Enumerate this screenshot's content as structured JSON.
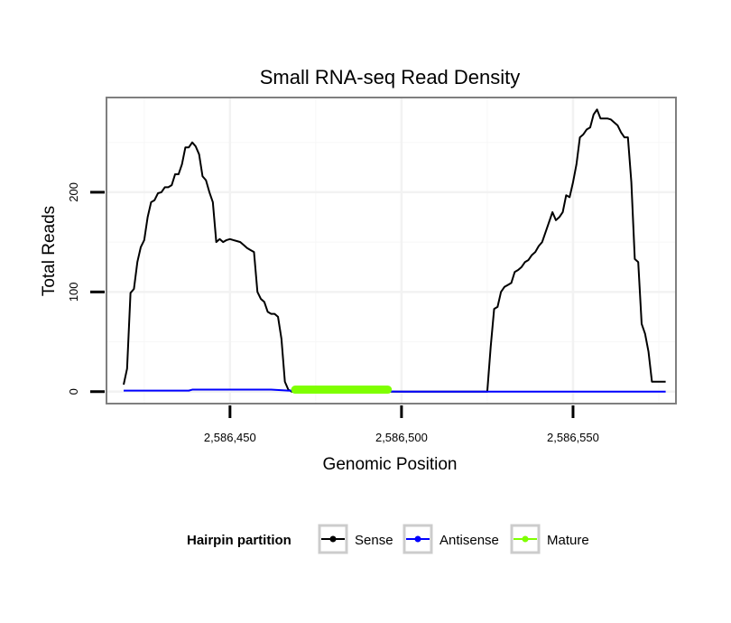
{
  "chart_data": {
    "type": "line",
    "title": "Small RNA-seq Read Density",
    "xlabel": "Genomic Position",
    "ylabel": "Total Reads",
    "xlim": [
      2586414,
      2586580
    ],
    "ylim": [
      -12,
      295
    ],
    "x_ticks": [
      2586450,
      2586500,
      2586550
    ],
    "x_tick_labels": [
      "2,586,450",
      "2,586,500",
      "2,586,550"
    ],
    "y_ticks": [
      0,
      100,
      200
    ],
    "y_tick_labels": [
      "0",
      "100",
      "200"
    ],
    "grid": true,
    "legend": {
      "title": "Hairpin partition",
      "position": "bottom",
      "entries": [
        "Sense",
        "Antisense",
        "Mature"
      ]
    },
    "series": [
      {
        "name": "Sense",
        "color": "#000000",
        "x": [
          2586419,
          2586420,
          2586421,
          2586422,
          2586423,
          2586424,
          2586425,
          2586426,
          2586427,
          2586428,
          2586429,
          2586430,
          2586431,
          2586432,
          2586433,
          2586434,
          2586435,
          2586436,
          2586437,
          2586438,
          2586439,
          2586440,
          2586441,
          2586442,
          2586443,
          2586444,
          2586445,
          2586446,
          2586447,
          2586448,
          2586449,
          2586450,
          2586451,
          2586452,
          2586453,
          2586454,
          2586455,
          2586456,
          2586457,
          2586458,
          2586459,
          2586460,
          2586461,
          2586462,
          2586463,
          2586464,
          2586465,
          2586466,
          2586467,
          2586468,
          2586469
        ],
        "y": [
          7,
          23,
          99,
          103,
          130,
          145,
          152,
          175,
          190,
          192,
          199,
          200,
          205,
          205,
          207,
          218,
          218,
          228,
          245,
          245,
          250,
          246,
          238,
          216,
          212,
          200,
          190,
          150,
          153,
          150,
          152,
          153,
          152,
          151,
          150,
          147,
          144,
          142,
          140,
          100,
          93,
          90,
          80,
          78,
          78,
          75,
          53,
          10,
          2,
          0,
          0
        ]
      },
      {
        "name": "Sense",
        "color": "#000000",
        "x": [
          2586470,
          2586480,
          2586490,
          2586500,
          2586510,
          2586520,
          2586525,
          2586526,
          2586527,
          2586528,
          2586529,
          2586530,
          2586531,
          2586532,
          2586533,
          2586534,
          2586535,
          2586536,
          2586537,
          2586538,
          2586539,
          2586540,
          2586541,
          2586542,
          2586543,
          2586544,
          2586545,
          2586546,
          2586547,
          2586548,
          2586549,
          2586550,
          2586551,
          2586552,
          2586553,
          2586554,
          2586555,
          2586556,
          2586557,
          2586558,
          2586559,
          2586560,
          2586561,
          2586562,
          2586563,
          2586564,
          2586565,
          2586566,
          2586567,
          2586568,
          2586569,
          2586570,
          2586571,
          2586572,
          2586573,
          2586574,
          2586575,
          2586576,
          2586577
        ],
        "y": [
          0,
          0,
          0,
          0,
          0,
          0,
          0,
          45,
          83,
          85,
          100,
          105,
          107,
          109,
          120,
          122,
          125,
          130,
          132,
          137,
          140,
          146,
          150,
          160,
          170,
          180,
          172,
          175,
          180,
          197,
          195,
          210,
          228,
          255,
          258,
          263,
          265,
          278,
          283,
          274,
          274,
          274,
          273,
          270,
          267,
          260,
          255,
          255,
          210,
          133,
          130,
          68,
          58,
          40,
          10,
          10,
          10,
          10,
          10
        ]
      },
      {
        "name": "Antisense",
        "color": "#0000ff",
        "x": [
          2586419,
          2586438,
          2586439,
          2586460,
          2586462,
          2586467,
          2586469,
          2586500,
          2586525,
          2586577
        ],
        "y": [
          1,
          1,
          2,
          2,
          2,
          1,
          1,
          0,
          0,
          0
        ]
      },
      {
        "name": "Mature",
        "color": "#7fff00",
        "x": [
          2586469,
          2586496
        ],
        "y": [
          2,
          2
        ]
      }
    ]
  }
}
